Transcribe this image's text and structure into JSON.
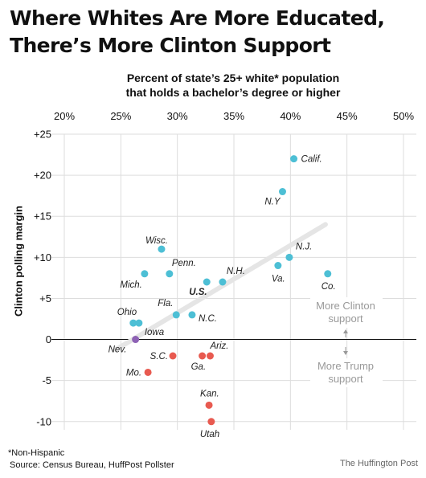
{
  "title": "Where Whites Are More Educated, There’s More Clinton Support",
  "chart_data": {
    "type": "scatter",
    "xlabel_lines": [
      "Percent of state’s 25+ white* population",
      "that holds a bachelor’s degree or higher"
    ],
    "ylabel": "Clinton polling margin",
    "x_ticks": [
      20,
      25,
      30,
      35,
      40,
      45,
      50
    ],
    "x_tick_labels": [
      "20%",
      "25%",
      "30%",
      "35%",
      "40%",
      "45%",
      "50%"
    ],
    "y_ticks": [
      25,
      20,
      15,
      10,
      5,
      0,
      -5,
      -10
    ],
    "y_tick_labels": [
      "+25",
      "+20",
      "+15",
      "+10",
      "+5",
      "0",
      "-5",
      "-10"
    ],
    "xlim": [
      20,
      50
    ],
    "ylim": [
      -11,
      25
    ],
    "grid": true,
    "trend_line": {
      "x": [
        24.6,
        43.1
      ],
      "y": [
        -1.2,
        14.0
      ]
    },
    "colors": {
      "clinton": "#4dbfd5",
      "trump": "#e85a50",
      "tie": "#8e62b5",
      "grid": "#dddddd",
      "trend": "#e5e5e5",
      "axis": "#111111",
      "annotation": "#999999"
    },
    "points": [
      {
        "label": "Calif.",
        "x": 40.3,
        "y": 22.0,
        "party": "clinton"
      },
      {
        "label": "N.Y",
        "x": 39.3,
        "y": 18.0,
        "party": "clinton"
      },
      {
        "label": "Wisc.",
        "x": 28.6,
        "y": 11.0,
        "party": "clinton"
      },
      {
        "label": "N.J.",
        "x": 39.9,
        "y": 10.0,
        "party": "clinton"
      },
      {
        "label": "Va.",
        "x": 38.9,
        "y": 9.0,
        "party": "clinton"
      },
      {
        "label": "Penn.",
        "x": 29.3,
        "y": 8.0,
        "party": "clinton"
      },
      {
        "label": "Mich.",
        "x": 27.1,
        "y": 8.0,
        "party": "clinton"
      },
      {
        "label": "Co.",
        "x": 43.3,
        "y": 8.0,
        "party": "clinton"
      },
      {
        "label": "U.S.",
        "x": 32.6,
        "y": 7.0,
        "party": "clinton",
        "bold": true
      },
      {
        "label": "N.H.",
        "x": 34.0,
        "y": 7.0,
        "party": "clinton"
      },
      {
        "label": "Fla.",
        "x": 29.9,
        "y": 3.0,
        "party": "clinton"
      },
      {
        "label": "N.C.",
        "x": 31.3,
        "y": 3.0,
        "party": "clinton"
      },
      {
        "label": "Ohio",
        "x": 26.1,
        "y": 2.0,
        "party": "clinton"
      },
      {
        "label": "Iowa",
        "x": 26.6,
        "y": 2.0,
        "party": "clinton"
      },
      {
        "label": "Nev.",
        "x": 26.3,
        "y": 0.0,
        "party": "tie"
      },
      {
        "label": "S.C.",
        "x": 29.6,
        "y": -2.0,
        "party": "trump"
      },
      {
        "label": "Ga.",
        "x": 32.2,
        "y": -2.0,
        "party": "trump"
      },
      {
        "label": "Ariz.",
        "x": 32.9,
        "y": -2.0,
        "party": "trump"
      },
      {
        "label": "Mo.",
        "x": 27.4,
        "y": -4.0,
        "party": "trump"
      },
      {
        "label": "Kan.",
        "x": 32.8,
        "y": -8.0,
        "party": "trump"
      },
      {
        "label": "Utah",
        "x": 33.0,
        "y": -10.0,
        "party": "trump"
      }
    ],
    "annotations": {
      "clinton_lines": [
        "More Clinton",
        "support"
      ],
      "trump_lines": [
        "More Trump",
        "support"
      ]
    }
  },
  "footnote_lines": [
    "*Non-Hispanic",
    "Source: Census Bureau, HuffPost Pollster"
  ],
  "credit": "The Huffington Post"
}
